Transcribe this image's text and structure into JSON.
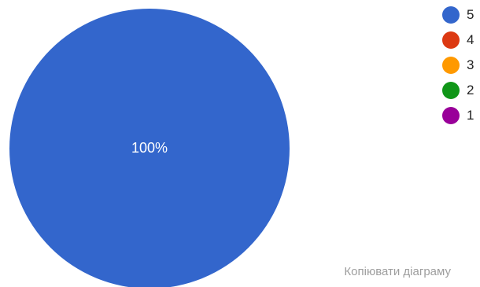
{
  "chart_data": {
    "type": "pie",
    "title": "",
    "slices": [
      {
        "label": "5",
        "value": 100,
        "color": "#3366cc"
      },
      {
        "label": "4",
        "value": 0,
        "color": "#dc3912"
      },
      {
        "label": "3",
        "value": 0,
        "color": "#ff9900"
      },
      {
        "label": "2",
        "value": 0,
        "color": "#109618"
      },
      {
        "label": "1",
        "value": 0,
        "color": "#990099"
      }
    ],
    "data_labels": [
      "100%"
    ],
    "legend_position": "top-right"
  },
  "actions": {
    "copy_chart_label": "Копіювати діаграму"
  }
}
